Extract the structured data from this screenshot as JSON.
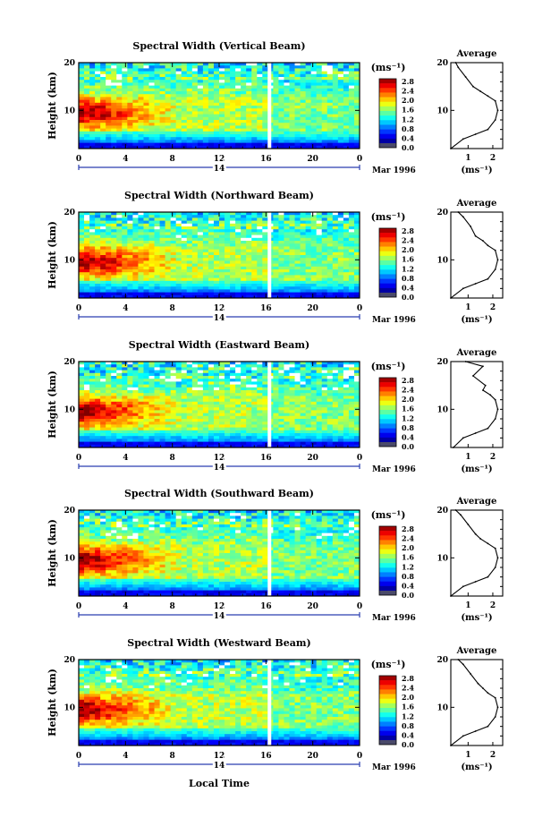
{
  "figure": {
    "xlabel": "Local Time",
    "date_label": "Mar 1996",
    "day_label": "14",
    "x_ticks": [
      "0",
      "4",
      "8",
      "12",
      "16",
      "20",
      "0"
    ],
    "y_ticks": [
      "20",
      "10"
    ],
    "ylabel": "Height (km)",
    "colorbar_unit": "(ms⁻¹)",
    "colorbar_ticks": [
      "2.8",
      "2.4",
      "2.0",
      "1.6",
      "1.2",
      "0.8",
      "0.4",
      "0.0"
    ],
    "profile_title": "Average",
    "profile_xlabel": "(ms⁻¹)",
    "profile_x_ticks": [
      "1",
      "2"
    ],
    "profile_y_ticks": [
      "20",
      "10"
    ]
  },
  "chart_data": [
    {
      "type": "heatmap",
      "title": "Spectral Width (Vertical Beam)",
      "xlabel": "Local Time",
      "ylabel": "Height (km)",
      "xlim": [
        0,
        24
      ],
      "ylim": [
        2,
        20
      ],
      "colorbar": {
        "unit": "ms-1",
        "range": [
          0.0,
          2.8
        ]
      },
      "profile": {
        "title": "Average",
        "x": [
          0.3,
          0.8,
          1.3,
          1.8,
          2.1,
          2.2,
          2.1,
          1.8,
          1.5,
          1.2,
          0.9,
          0.6,
          0.5
        ],
        "y": [
          2,
          4,
          5,
          6,
          8,
          10,
          12,
          13,
          14,
          15,
          17,
          19,
          20
        ]
      }
    },
    {
      "type": "heatmap",
      "title": "Spectral Width (Northward Beam)",
      "xlabel": "Local Time",
      "ylabel": "Height (km)",
      "xlim": [
        0,
        24
      ],
      "ylim": [
        2,
        20
      ],
      "colorbar": {
        "unit": "ms-1",
        "range": [
          0.0,
          2.8
        ]
      },
      "profile": {
        "title": "Average",
        "x": [
          0.3,
          0.8,
          1.3,
          1.8,
          2.1,
          2.2,
          2.1,
          1.8,
          1.6,
          1.3,
          1.1,
          0.8,
          0.6
        ],
        "y": [
          2,
          4,
          5,
          6,
          8,
          10,
          12,
          13,
          14,
          15,
          17,
          19,
          20
        ]
      }
    },
    {
      "type": "heatmap",
      "title": "Spectral Width (Eastward Beam)",
      "xlabel": "Local Time",
      "ylabel": "Height (km)",
      "xlim": [
        0,
        24
      ],
      "ylim": [
        2,
        20
      ],
      "colorbar": {
        "unit": "ms-1",
        "range": [
          0.0,
          2.8
        ]
      },
      "profile": {
        "title": "Average",
        "x": [
          0.4,
          0.8,
          1.3,
          1.8,
          2.1,
          2.2,
          2.1,
          1.9,
          1.6,
          1.7,
          1.2,
          1.6,
          0.9
        ],
        "y": [
          2,
          4,
          5,
          6,
          8,
          10,
          12,
          13,
          14,
          15,
          17,
          19,
          20
        ]
      }
    },
    {
      "type": "heatmap",
      "title": "Spectral Width (Southward Beam)",
      "xlabel": "Local Time",
      "ylabel": "Height (km)",
      "xlim": [
        0,
        24
      ],
      "ylim": [
        2,
        20
      ],
      "colorbar": {
        "unit": "ms-1",
        "range": [
          0.0,
          2.8
        ]
      },
      "profile": {
        "title": "Average",
        "x": [
          0.3,
          0.8,
          1.3,
          1.8,
          2.1,
          2.2,
          2.1,
          1.8,
          1.5,
          1.3,
          1.0,
          0.7,
          0.5
        ],
        "y": [
          2,
          4,
          5,
          6,
          8,
          10,
          12,
          13,
          14,
          15,
          17,
          19,
          20
        ]
      }
    },
    {
      "type": "heatmap",
      "title": "Spectral Width (Westward Beam)",
      "xlabel": "Local Time",
      "ylabel": "Height (km)",
      "xlim": [
        0,
        24
      ],
      "ylim": [
        2,
        20
      ],
      "colorbar": {
        "unit": "ms-1",
        "range": [
          0.0,
          2.8
        ]
      },
      "profile": {
        "title": "Average",
        "x": [
          0.3,
          0.8,
          1.3,
          1.8,
          2.1,
          2.2,
          2.1,
          1.8,
          1.6,
          1.4,
          1.1,
          0.8,
          0.6
        ],
        "y": [
          2,
          4,
          5,
          6,
          8,
          10,
          12,
          13,
          14,
          15,
          17,
          19,
          20
        ]
      }
    }
  ]
}
